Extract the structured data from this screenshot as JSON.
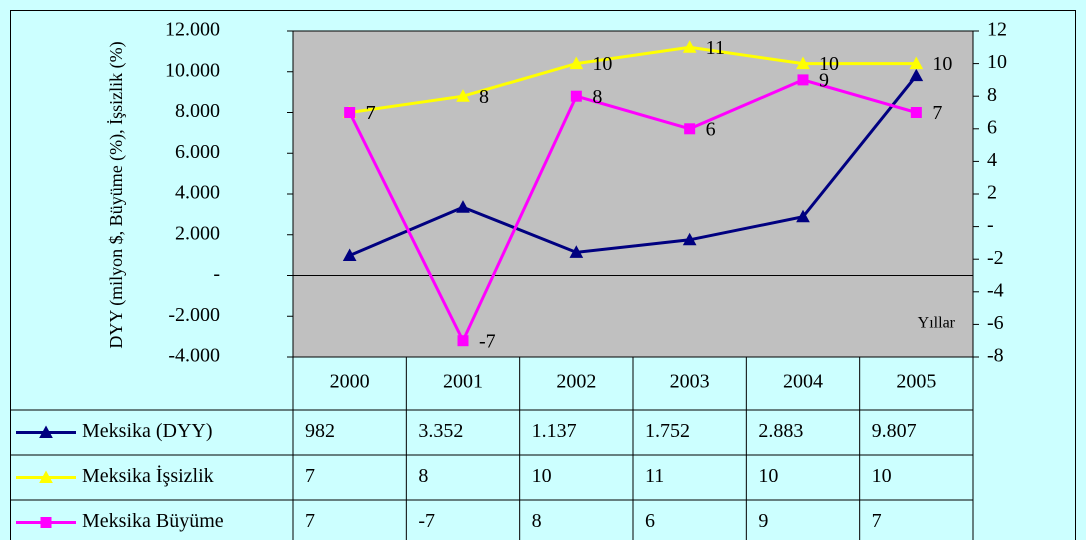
{
  "chart_data": {
    "type": "line",
    "y_label": "DYY (milyon $, Büyüme (%), İşsizlik (%)",
    "x_label": "Yıllar",
    "categories": [
      "2000",
      "2001",
      "2002",
      "2003",
      "2004",
      "2005"
    ],
    "ylim": [
      -4000,
      12000
    ],
    "yticks": [
      {
        "value": -4000,
        "label": "-4.000"
      },
      {
        "value": -2000,
        "label": "-2.000"
      },
      {
        "value": 0,
        "label": "-"
      },
      {
        "value": 2000,
        "label": "2.000"
      },
      {
        "value": 4000,
        "label": "4.000"
      },
      {
        "value": 6000,
        "label": "6.000"
      },
      {
        "value": 8000,
        "label": "8.000"
      },
      {
        "value": 10000,
        "label": "10.000"
      },
      {
        "value": 12000,
        "label": "12.000"
      }
    ],
    "y2lim": [
      -8,
      12
    ],
    "y2ticks": [
      -8,
      -6,
      -4,
      -2,
      {
        "value": 0,
        "label": "-"
      },
      2,
      4,
      6,
      8,
      10,
      12
    ],
    "series": [
      {
        "name": "Meksika (DYY)",
        "color": "#000080",
        "marker": "triangle",
        "values": [
          982,
          3352,
          1137,
          1752,
          2883,
          9807
        ],
        "value_labels": [
          "982",
          "3.352",
          "1.137",
          "1.752",
          "2.883",
          "9.807"
        ]
      },
      {
        "name": "Meksika İşsizlik",
        "color": "#ffff00",
        "marker": "triangle",
        "axis": "y2",
        "values": [
          7,
          8,
          10,
          11,
          10,
          10
        ]
      },
      {
        "name": "Meksika Büyüme",
        "color": "#ff00ff",
        "marker": "square",
        "axis": "y2",
        "values": [
          7,
          -7,
          8,
          6,
          9,
          7
        ]
      }
    ]
  }
}
